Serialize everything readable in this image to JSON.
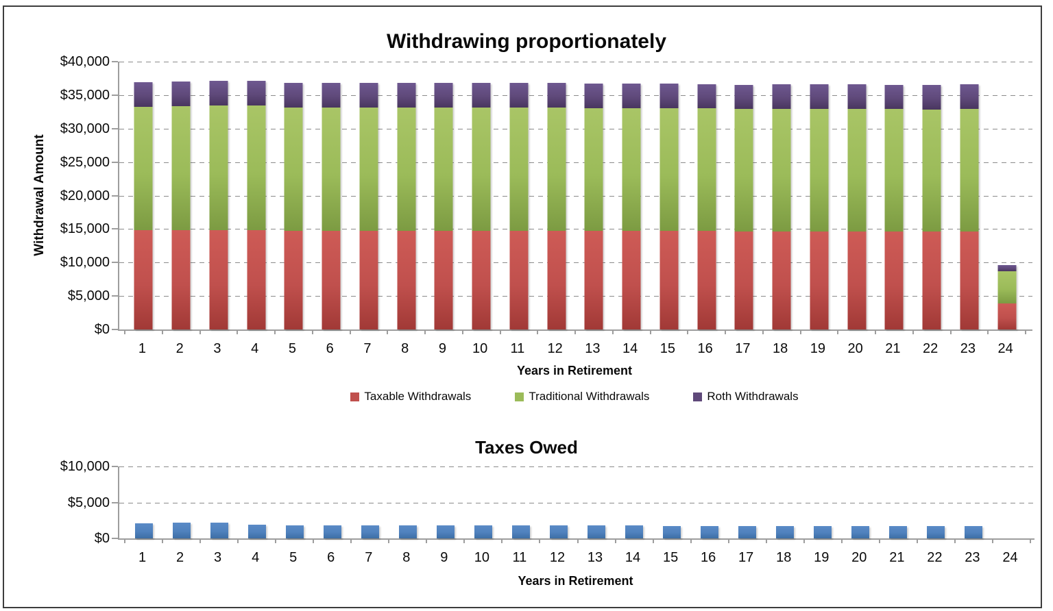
{
  "page": {
    "background": "#FFFFFF",
    "frame_border_color": "#3D3D3D",
    "axis_color": "#9D9D9D",
    "gridline_color": "#8A8A8A"
  },
  "chart_data": [
    {
      "type": "bar",
      "stacked": true,
      "title": "Withdrawing proportionately",
      "xlabel": "Years in Retirement",
      "ylabel": "Withdrawal Amount",
      "ylim": [
        0,
        40000
      ],
      "ytick_step": 5000,
      "ytick_labels": [
        "$0",
        "$5,000",
        "$10,000",
        "$15,000",
        "$20,000",
        "$25,000",
        "$30,000",
        "$35,000",
        "$40,000"
      ],
      "grid": "horizontal-dashed",
      "legend": "bottom",
      "categories": [
        1,
        2,
        3,
        4,
        5,
        6,
        7,
        8,
        9,
        10,
        11,
        12,
        13,
        14,
        15,
        16,
        17,
        18,
        19,
        20,
        21,
        22,
        23,
        24
      ],
      "series": [
        {
          "name": "Taxable Withdrawals",
          "fill": "#C0504D",
          "fill_light": "#CE5B56",
          "fill_dark": "#A13936",
          "values": [
            14800,
            14850,
            14850,
            14850,
            14750,
            14750,
            14750,
            14750,
            14750,
            14750,
            14700,
            14700,
            14700,
            14700,
            14700,
            14700,
            14650,
            14650,
            14650,
            14650,
            14650,
            14650,
            14600,
            3900
          ]
        },
        {
          "name": "Traditional Withdrawals",
          "fill": "#9BBB59",
          "fill_light": "#A9C566",
          "fill_dark": "#7C9B42",
          "values": [
            18450,
            18550,
            18600,
            18600,
            18400,
            18400,
            18400,
            18400,
            18400,
            18400,
            18400,
            18400,
            18350,
            18350,
            18300,
            18350,
            18350,
            18350,
            18300,
            18300,
            18300,
            18250,
            18300,
            4850
          ]
        },
        {
          "name": "Roth Withdrawals",
          "fill": "#5F497A",
          "fill_light": "#6E5890",
          "fill_dark": "#49365F",
          "values": [
            3650,
            3700,
            3700,
            3700,
            3700,
            3700,
            3650,
            3700,
            3650,
            3650,
            3650,
            3650,
            3650,
            3650,
            3650,
            3600,
            3600,
            3650,
            3650,
            3650,
            3600,
            3650,
            3650,
            950
          ]
        }
      ]
    },
    {
      "type": "bar",
      "stacked": false,
      "title": "Taxes Owed",
      "xlabel": "Years in Retirement",
      "ylabel": "",
      "ylim": [
        0,
        10000
      ],
      "ytick_step": 5000,
      "ytick_labels": [
        "$0",
        "$5,000",
        "$10,000"
      ],
      "grid": "horizontal-dashed",
      "legend": "none",
      "categories": [
        1,
        2,
        3,
        4,
        5,
        6,
        7,
        8,
        9,
        10,
        11,
        12,
        13,
        14,
        15,
        16,
        17,
        18,
        19,
        20,
        21,
        22,
        23,
        24
      ],
      "series": [
        {
          "name": "Taxes Owed",
          "fill": "#4F81BD",
          "fill_light": "#5A8AC6",
          "fill_dark": "#3D6EA5",
          "values": [
            2050,
            2150,
            2150,
            1950,
            1850,
            1850,
            1850,
            1830,
            1820,
            1820,
            1800,
            1800,
            1780,
            1780,
            1760,
            1760,
            1750,
            1750,
            1730,
            1730,
            1720,
            1700,
            1700,
            0
          ]
        }
      ]
    }
  ]
}
